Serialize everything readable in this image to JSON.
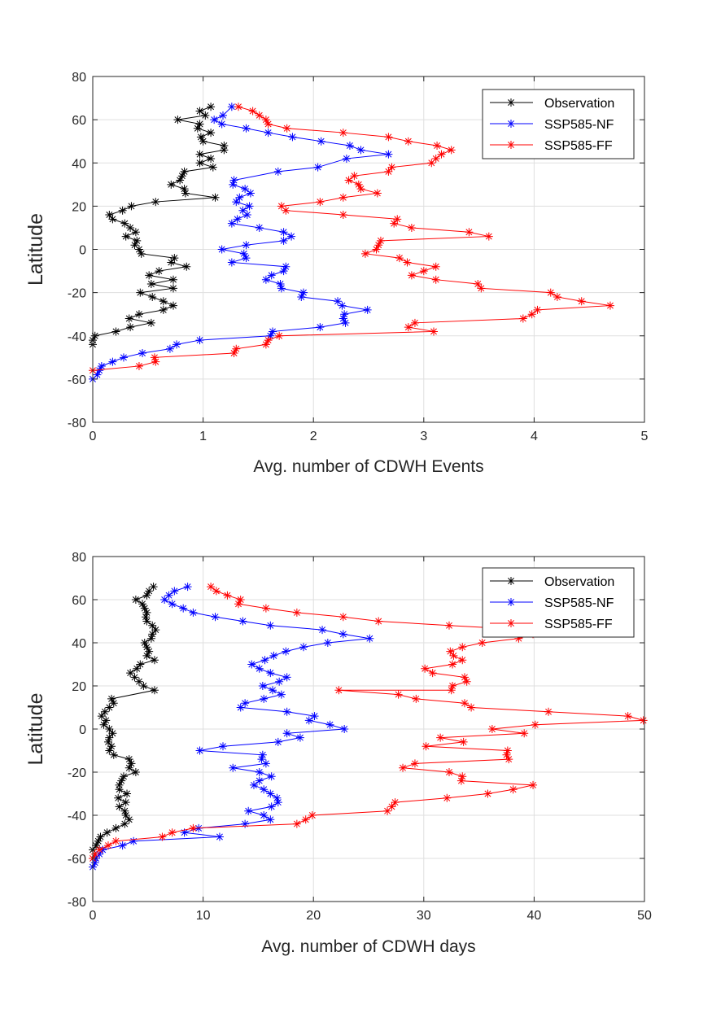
{
  "chart_data": [
    {
      "type": "line",
      "xlabel": "Avg. number of CDWH Events",
      "ylabel": "Latitude",
      "xlim": [
        0,
        5
      ],
      "ylim": [
        -80,
        80
      ],
      "xticks": [
        "0",
        "1",
        "2",
        "3",
        "4",
        "5"
      ],
      "yticks": [
        "80",
        "60",
        "40",
        "20",
        "0",
        "-20",
        "-40",
        "-60",
        "-80"
      ],
      "grid": true,
      "marker": "asterisk",
      "legend_position": "top-right",
      "series": [
        {
          "name": "Observation",
          "color": "#000000",
          "x": [
            1.07,
            0.97,
            1.02,
            0.77,
            0.97,
            0.95,
            1.07,
            0.98,
            1.0,
            1.19,
            1.19,
            0.97,
            1.07,
            0.97,
            1.09,
            0.83,
            0.81,
            0.79,
            0.71,
            0.83,
            0.84,
            1.11,
            0.57,
            0.35,
            0.27,
            0.15,
            0.18,
            0.29,
            0.34,
            0.39,
            0.3,
            0.4,
            0.38,
            0.42,
            0.44,
            0.74,
            0.71,
            0.85,
            0.6,
            0.51,
            0.73,
            0.53,
            0.73,
            0.43,
            0.54,
            0.64,
            0.73,
            0.64,
            0.42,
            0.33,
            0.53,
            0.34,
            0.21,
            0.02,
            0.0,
            0.0
          ],
          "y": [
            66,
            64,
            62,
            60,
            58,
            56,
            54,
            52,
            50,
            48,
            46,
            44,
            42,
            40,
            38,
            36,
            34,
            32,
            30,
            28,
            26,
            24,
            22,
            20,
            18,
            16,
            14,
            12,
            10,
            8,
            6,
            4,
            2,
            0,
            -2,
            -4,
            -6,
            -8,
            -10,
            -12,
            -14,
            -16,
            -18,
            -20,
            -22,
            -24,
            -26,
            -28,
            -30,
            -32,
            -34,
            -36,
            -38,
            -40,
            -42,
            -44
          ]
        },
        {
          "name": "SSP585-NF",
          "color": "#0000ff",
          "x": [
            1.26,
            1.18,
            1.1,
            1.17,
            1.39,
            1.59,
            1.81,
            2.07,
            2.33,
            2.43,
            2.68,
            2.3,
            2.04,
            1.68,
            1.28,
            1.27,
            1.38,
            1.43,
            1.33,
            1.3,
            1.42,
            1.36,
            1.4,
            1.31,
            1.26,
            1.51,
            1.73,
            1.8,
            1.73,
            1.39,
            1.17,
            1.37,
            1.39,
            1.26,
            1.75,
            1.73,
            1.62,
            1.57,
            1.7,
            1.71,
            1.91,
            1.89,
            2.22,
            2.26,
            2.49,
            2.28,
            2.27,
            2.29,
            2.06,
            1.63,
            1.61,
            0.97,
            0.76,
            0.7,
            0.45,
            0.28,
            0.18,
            0.08,
            0.06,
            0.04,
            0.0
          ],
          "y": [
            66,
            62,
            60,
            58,
            56,
            54,
            52,
            50,
            48,
            46,
            44,
            42,
            38,
            36,
            32,
            30,
            28,
            26,
            24,
            22,
            20,
            18,
            16,
            14,
            12,
            10,
            8,
            6,
            4,
            2,
            0,
            -2,
            -4,
            -6,
            -8,
            -10,
            -12,
            -14,
            -16,
            -18,
            -20,
            -22,
            -24,
            -26,
            -28,
            -30,
            -32,
            -34,
            -36,
            -38,
            -40,
            -42,
            -44,
            -46,
            -48,
            -50,
            -52,
            -54,
            -56,
            -58,
            -60
          ]
        },
        {
          "name": "SSP585-FF",
          "color": "#ff0000",
          "x": [
            1.32,
            1.45,
            1.51,
            1.57,
            1.59,
            1.76,
            2.27,
            2.68,
            2.86,
            3.12,
            3.25,
            3.16,
            3.11,
            3.07,
            2.71,
            2.68,
            2.37,
            2.32,
            2.41,
            2.43,
            2.58,
            2.27,
            2.06,
            1.71,
            1.75,
            2.27,
            2.76,
            2.73,
            2.89,
            3.41,
            3.59,
            2.61,
            2.59,
            2.57,
            2.47,
            2.78,
            2.85,
            3.11,
            3.0,
            2.89,
            3.11,
            3.49,
            3.52,
            4.15,
            4.21,
            4.43,
            4.69,
            4.03,
            3.98,
            3.9,
            2.92,
            2.86,
            3.09,
            1.69,
            1.59,
            1.57,
            1.3,
            1.28,
            0.56,
            0.57,
            0.42,
            0.0
          ],
          "y": [
            66,
            64,
            62,
            60,
            58,
            56,
            54,
            52,
            50,
            48,
            46,
            44,
            42,
            40,
            38,
            36,
            34,
            32,
            30,
            28,
            26,
            24,
            22,
            20,
            18,
            16,
            14,
            12,
            10,
            8,
            6,
            4,
            2,
            0,
            -2,
            -4,
            -6,
            -8,
            -10,
            -12,
            -14,
            -16,
            -18,
            -20,
            -22,
            -24,
            -26,
            -28,
            -30,
            -32,
            -34,
            -36,
            -38,
            -40,
            -42,
            -44,
            -46,
            -48,
            -50,
            -52,
            -54,
            -56
          ]
        }
      ]
    },
    {
      "type": "line",
      "xlabel": "Avg. number of CDWH days",
      "ylabel": "Latitude",
      "xlim": [
        0,
        50
      ],
      "ylim": [
        -80,
        80
      ],
      "xticks": [
        "0",
        "10",
        "20",
        "30",
        "40",
        "50"
      ],
      "yticks": [
        "80",
        "60",
        "40",
        "20",
        "0",
        "-20",
        "-40",
        "-60",
        "-80"
      ],
      "grid": true,
      "marker": "asterisk",
      "legend_position": "top-right",
      "series": [
        {
          "name": "Observation",
          "color": "#000000",
          "x": [
            5.5,
            5.1,
            4.9,
            3.9,
            4.5,
            4.7,
            4.9,
            4.8,
            4.9,
            5.4,
            5.7,
            5.4,
            5.3,
            4.7,
            4.9,
            5.1,
            4.9,
            5.6,
            4.3,
            4.0,
            3.4,
            3.8,
            4.2,
            4.6,
            5.6,
            1.7,
            1.9,
            1.5,
            1.1,
            0.8,
            1.2,
            1.0,
            1.5,
            1.8,
            1.5,
            1.4,
            1.7,
            1.5,
            1.9,
            3.3,
            3.5,
            3.3,
            3.9,
            2.8,
            2.6,
            2.4,
            2.4,
            3.1,
            2.3,
            3.0,
            2.4,
            2.9,
            3.0,
            3.3,
            2.9,
            2.1,
            1.3,
            0.7,
            0.5,
            0.3,
            0.0
          ],
          "y": [
            66,
            64,
            62,
            60,
            58,
            56,
            54,
            52,
            50,
            48,
            46,
            44,
            42,
            40,
            38,
            36,
            34,
            32,
            30,
            28,
            26,
            24,
            22,
            20,
            18,
            14,
            12,
            10,
            8,
            6,
            4,
            2,
            0,
            -2,
            -4,
            -6,
            -8,
            -10,
            -12,
            -14,
            -16,
            -18,
            -20,
            -22,
            -24,
            -26,
            -28,
            -30,
            -32,
            -34,
            -36,
            -38,
            -40,
            -42,
            -44,
            -46,
            -48,
            -50,
            -52,
            -54,
            -56
          ]
        },
        {
          "name": "SSP585-NF",
          "color": "#0000ff",
          "x": [
            8.6,
            7.4,
            6.9,
            6.5,
            7.2,
            8.2,
            9.1,
            11.1,
            13.6,
            16.1,
            20.8,
            22.7,
            25.1,
            21.3,
            19.1,
            17.5,
            16.4,
            15.6,
            14.4,
            15.1,
            16.1,
            17.6,
            16.9,
            15.4,
            16.3,
            17.1,
            15.5,
            13.8,
            13.4,
            17.6,
            20.1,
            19.6,
            21.5,
            22.8,
            17.6,
            18.8,
            16.8,
            11.8,
            9.7,
            15.4,
            15.3,
            15.7,
            12.7,
            15.1,
            16.2,
            15.1,
            14.6,
            15.5,
            16.1,
            16.7,
            16.8,
            16.2,
            14.1,
            15.5,
            16.1,
            13.8,
            9.6,
            8.3,
            11.5,
            3.7,
            2.7,
            0.9,
            0.6,
            0.3,
            0.2,
            0.0
          ],
          "y": [
            66,
            64,
            62,
            60,
            58,
            56,
            54,
            52,
            50,
            48,
            46,
            44,
            42,
            40,
            38,
            36,
            34,
            32,
            30,
            28,
            26,
            24,
            22,
            20,
            18,
            16,
            14,
            12,
            10,
            8,
            6,
            4,
            2,
            0,
            -2,
            -4,
            -6,
            -8,
            -10,
            -12,
            -14,
            -16,
            -18,
            -20,
            -22,
            -24,
            -26,
            -28,
            -30,
            -32,
            -34,
            -36,
            -38,
            -40,
            -42,
            -44,
            -46,
            -48,
            -50,
            -52,
            -54,
            -56,
            -58,
            -60,
            -62,
            -64
          ]
        },
        {
          "name": "SSP585-FF",
          "color": "#ff0000",
          "x": [
            10.7,
            11.2,
            12.2,
            13.4,
            13.2,
            15.7,
            18.5,
            22.7,
            25.9,
            32.3,
            39.5,
            39.9,
            38.6,
            35.3,
            33.5,
            32.4,
            32.7,
            33.5,
            32.6,
            30.1,
            30.8,
            33.7,
            33.9,
            32.6,
            32.5,
            22.3,
            27.7,
            29.3,
            33.7,
            34.3,
            41.3,
            48.5,
            49.9,
            40.1,
            36.2,
            39.1,
            31.5,
            33.6,
            30.2,
            37.6,
            37.5,
            37.7,
            29.2,
            28.1,
            32.3,
            33.5,
            33.4,
            39.9,
            38.1,
            35.8,
            32.1,
            27.4,
            27.1,
            26.7,
            19.9,
            19.3,
            18.5,
            9.1,
            7.2,
            6.3,
            2.1,
            1.4,
            0.6,
            0.2,
            0.0
          ],
          "y": [
            66,
            64,
            62,
            60,
            58,
            56,
            54,
            52,
            50,
            48,
            46,
            44,
            42,
            40,
            38,
            36,
            34,
            32,
            30,
            28,
            26,
            24,
            22,
            20,
            18,
            18,
            16,
            14,
            12,
            10,
            8,
            6,
            4,
            2,
            0,
            -2,
            -4,
            -6,
            -8,
            -10,
            -12,
            -14,
            -16,
            -18,
            -20,
            -22,
            -24,
            -26,
            -28,
            -30,
            -32,
            -34,
            -36,
            -38,
            -40,
            -42,
            -44,
            -46,
            -48,
            -50,
            -52,
            -54,
            -56,
            -58,
            -60
          ]
        }
      ]
    }
  ]
}
